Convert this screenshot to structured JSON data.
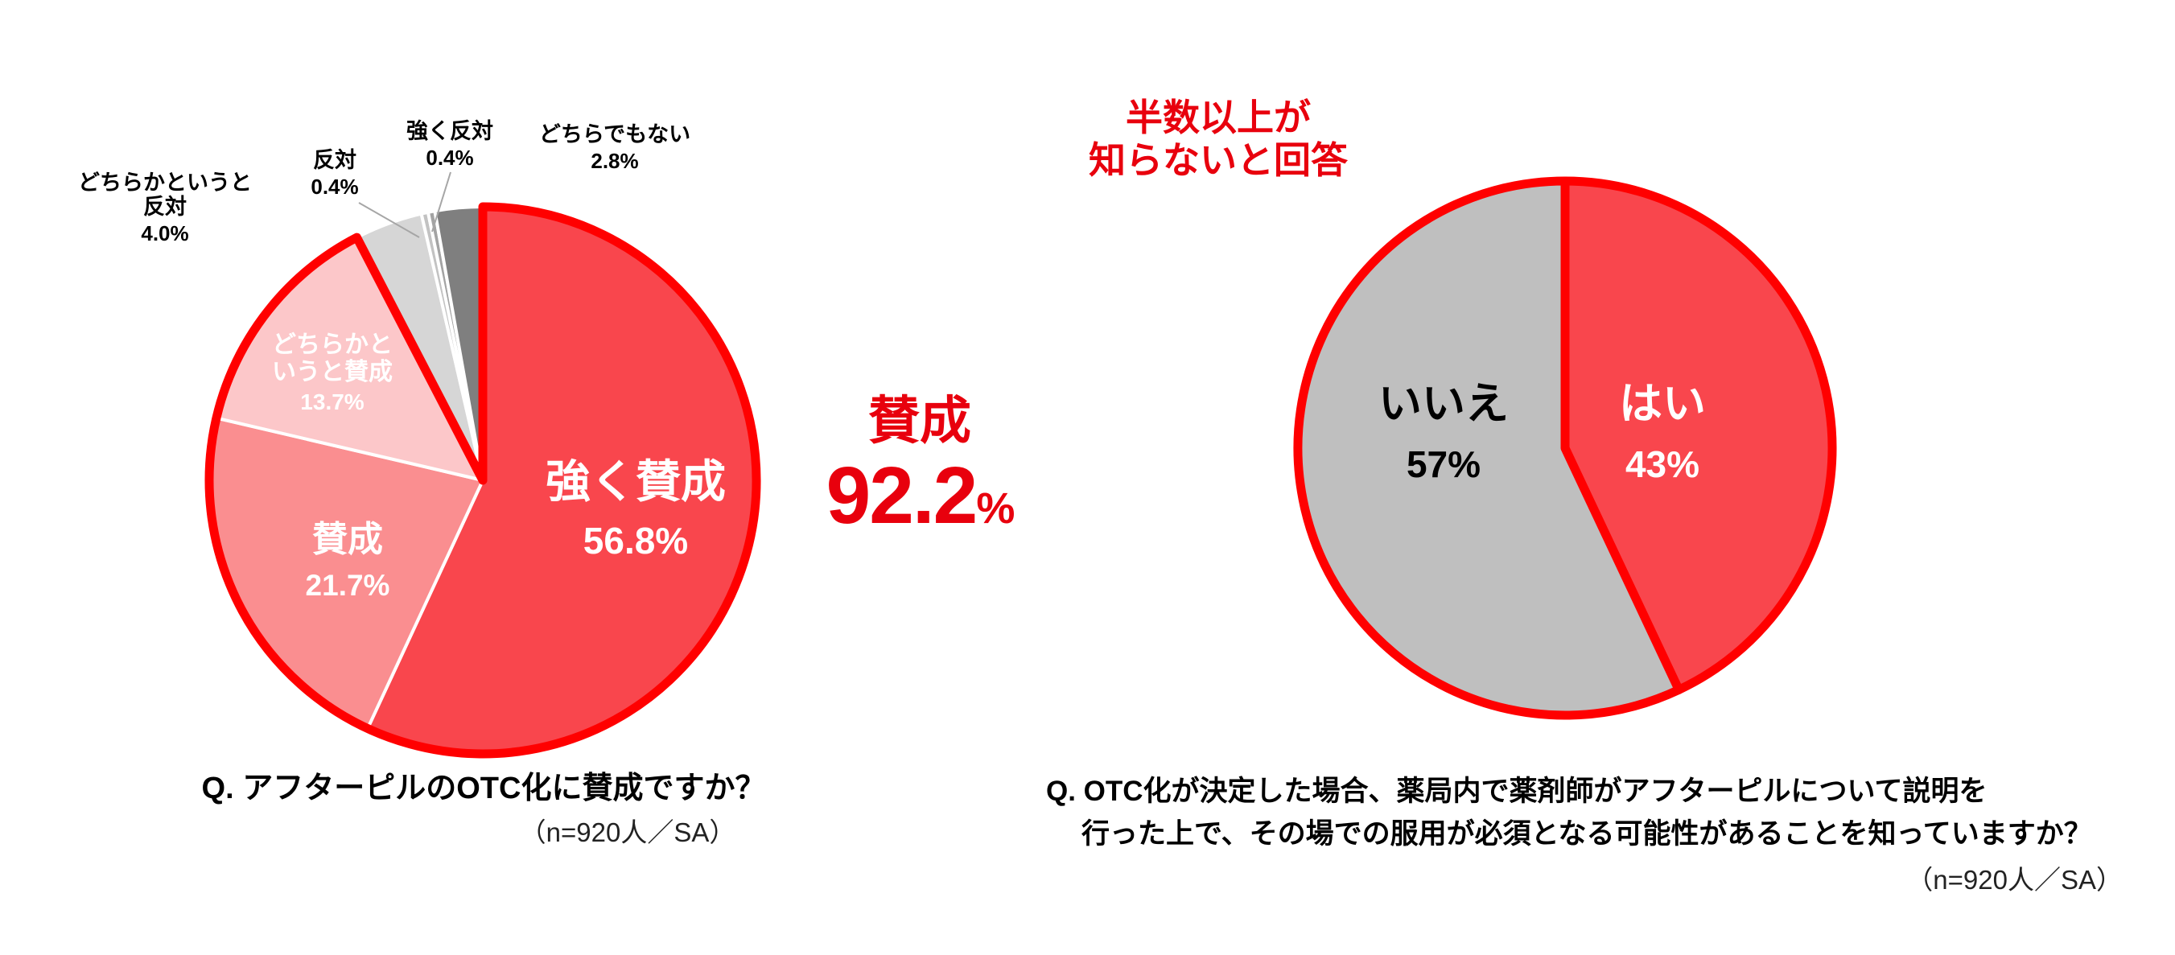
{
  "background": "#ffffff",
  "colors": {
    "outline_red": "#ff0000",
    "text_red": "#e8000d",
    "main_red": "#f9464d",
    "leader_line_gray": "#a6a6a6"
  },
  "chart_data": [
    {
      "type": "pie",
      "name": "otc-approval",
      "question": "Q. アフターピルのOTC化に賛成ですか？",
      "sample_note": "（n=920人／SA）",
      "start_angle_deg": 0,
      "direction": "clockwise",
      "legend": "none",
      "slices": [
        {
          "name": "strong-agree",
          "label": "強く賛成",
          "pct_label": "56.8%",
          "value": 56.8,
          "color": "#f9464d",
          "label_color": "#ffffff",
          "label_placement": "inside"
        },
        {
          "name": "agree",
          "label": "賛成",
          "pct_label": "21.7%",
          "value": 21.7,
          "color": "#fa8e90",
          "label_color": "#ffffff",
          "label_placement": "inside"
        },
        {
          "name": "somewhat-agree",
          "label": "どちらかというと賛成",
          "label_lines": [
            "どちらかと",
            "いうと賛成"
          ],
          "pct_label": "13.7%",
          "value": 13.7,
          "color": "#fcc7c9",
          "label_color": "#ffffff",
          "label_placement": "inside"
        },
        {
          "name": "somewhat-oppose",
          "label": "どちらかというと反対",
          "label_lines": [
            "どちらかというと",
            "反対"
          ],
          "pct_label": "4.0%",
          "value": 4.0,
          "color": "#d6d6d6",
          "label_color": "#000000",
          "label_placement": "outside"
        },
        {
          "name": "oppose",
          "label": "反対",
          "pct_label": "0.4%",
          "value": 0.4,
          "color": "#c2c2c2",
          "label_color": "#000000",
          "label_placement": "outside"
        },
        {
          "name": "strong-oppose",
          "label": "強く反対",
          "pct_label": "0.4%",
          "value": 0.4,
          "color": "#a3a3a3",
          "label_color": "#000000",
          "label_placement": "outside"
        },
        {
          "name": "neither",
          "label": "どちらでもない",
          "pct_label": "2.8%",
          "value": 2.8,
          "color": "#7f7f7f",
          "label_color": "#000000",
          "label_placement": "outside"
        }
      ],
      "highlight": {
        "label": "賛成",
        "value_text": "92.2",
        "unit": "%",
        "covers_slices": [
          "強く賛成",
          "賛成",
          "どちらかというと賛成"
        ],
        "color": "#e8000d"
      },
      "outline_color": "#ff0000"
    },
    {
      "type": "pie",
      "name": "awareness",
      "question_lines": [
        "Q. OTC化が決定した場合、薬局内で薬剤師がアフターピルについて説明を",
        "行った上で、その場での服用が必須となる可能性があることを知っていますか？"
      ],
      "sample_note": "（n=920人／SA）",
      "start_angle_deg": 0,
      "direction": "clockwise",
      "annotation": {
        "lines": [
          "半数以上が",
          "知らないと回答"
        ],
        "color": "#e8000d"
      },
      "slices": [
        {
          "name": "yes",
          "label": "はい",
          "pct_label": "43%",
          "value": 43,
          "color": "#f9464d",
          "label_color": "#ffffff",
          "label_placement": "inside"
        },
        {
          "name": "no",
          "label": "いいえ",
          "pct_label": "57%",
          "value": 57,
          "color": "#bfbfbf",
          "label_color": "#000000",
          "label_placement": "inside"
        }
      ],
      "outline_color": "#ff0000"
    }
  ]
}
